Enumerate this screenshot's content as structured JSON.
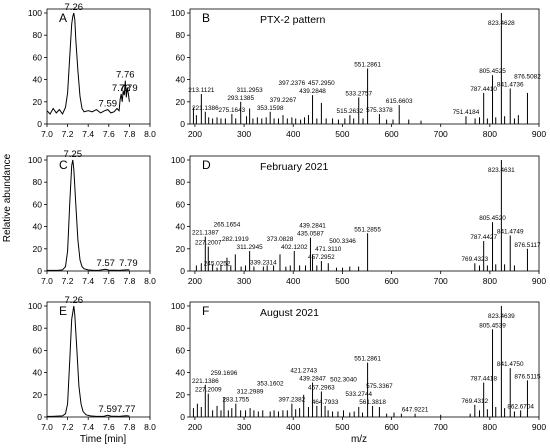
{
  "axes_text": {
    "y_label": "Relative abundance",
    "x_label_left": "Time [min]",
    "x_label_right": "m/z"
  },
  "chart_data": [
    {
      "type": "line",
      "panel": "A",
      "xlim": [
        7.0,
        8.0
      ],
      "ylim": [
        0,
        100
      ],
      "x_ticks": [
        "7.0",
        "7.2",
        "7.4",
        "7.6",
        "7.8",
        "8.0"
      ],
      "y_ticks": [
        "0",
        "20",
        "40",
        "60",
        "80",
        "100"
      ],
      "peak_labels": [
        {
          "x": 7.26,
          "y": 100,
          "text": "7.26"
        },
        {
          "x": 7.59,
          "y": 13,
          "text": "7.59"
        },
        {
          "x": 7.72,
          "y": 27,
          "text": "7.72"
        },
        {
          "x": 7.76,
          "y": 39,
          "text": "7.76"
        },
        {
          "x": 7.79,
          "y": 27,
          "text": "7.79"
        }
      ],
      "x": [
        7.0,
        7.03,
        7.06,
        7.09,
        7.12,
        7.15,
        7.18,
        7.2,
        7.22,
        7.24,
        7.25,
        7.26,
        7.27,
        7.28,
        7.3,
        7.32,
        7.34,
        7.36,
        7.4,
        7.44,
        7.48,
        7.52,
        7.56,
        7.59,
        7.62,
        7.65,
        7.68,
        7.7,
        7.71,
        7.72,
        7.73,
        7.74,
        7.75,
        7.76,
        7.77,
        7.78,
        7.79,
        7.8
      ],
      "y": [
        12,
        9,
        14,
        10,
        13,
        9,
        15,
        28,
        60,
        90,
        97,
        100,
        94,
        76,
        48,
        25,
        14,
        11,
        12,
        11,
        13,
        10,
        12,
        13,
        10,
        11,
        14,
        12,
        22,
        27,
        20,
        30,
        26,
        39,
        24,
        33,
        27,
        20
      ]
    },
    {
      "type": "bar",
      "panel": "B",
      "title": "PTX-2 pattern",
      "xlim": [
        190,
        900
      ],
      "ylim": [
        0,
        100
      ],
      "x_ticks": [
        "200",
        "300",
        "400",
        "500",
        "600",
        "700",
        "800",
        "900"
      ],
      "y_ticks": [
        "0",
        "20",
        "40",
        "60",
        "80",
        "100"
      ],
      "x": [
        197,
        203,
        213.1121,
        221.1386,
        228,
        236,
        245,
        253,
        262,
        275.1643,
        283,
        293.1385,
        305,
        311.2953,
        318,
        327,
        336,
        345,
        353.1598,
        361,
        370,
        379.2267,
        388,
        397.2376,
        405,
        415,
        423,
        431,
        439.2848,
        448,
        457.295,
        467,
        480,
        492,
        505,
        515.2632,
        523,
        533.2757,
        542,
        551.2861,
        575.3378,
        590,
        603,
        615.6603,
        635,
        660,
        751.4184,
        770,
        779,
        787.441,
        795,
        805.4525,
        812,
        823.4628,
        830,
        841.4736,
        850,
        858,
        876.5082
      ],
      "values": [
        15,
        8,
        27,
        11,
        6,
        5,
        6,
        5,
        5,
        9,
        5,
        20,
        7,
        14,
        5,
        6,
        5,
        6,
        11,
        5,
        5,
        8,
        5,
        6,
        5,
        4,
        6,
        8,
        26,
        5,
        19,
        5,
        5,
        4,
        5,
        8,
        5,
        24,
        5,
        50,
        9,
        4,
        4,
        17,
        4,
        3,
        7,
        5,
        6,
        28,
        5,
        44,
        6,
        100,
        7,
        32,
        5,
        8,
        28
      ],
      "labels": [
        {
          "x": 213.1121,
          "text": "213.1121"
        },
        {
          "x": 221.1386,
          "text": "221.1386"
        },
        {
          "x": 275.1643,
          "text": "275.1643"
        },
        {
          "x": 293.1385,
          "text": "293.1385"
        },
        {
          "x": 311.2953,
          "text": "311.2953"
        },
        {
          "x": 353.1598,
          "text": "353.1598"
        },
        {
          "x": 379.2267,
          "text": "379.2267"
        },
        {
          "x": 397.2376,
          "text": "397.2376"
        },
        {
          "x": 439.2848,
          "text": "439.2848"
        },
        {
          "x": 457.295,
          "text": "457.2950"
        },
        {
          "x": 515.2632,
          "text": "515.2632"
        },
        {
          "x": 533.2757,
          "text": "533.2757"
        },
        {
          "x": 551.2861,
          "text": "551.2861"
        },
        {
          "x": 575.3378,
          "text": "575.3378"
        },
        {
          "x": 615.6603,
          "text": "615.6603"
        },
        {
          "x": 751.4184,
          "text": "751.4184"
        },
        {
          "x": 787.441,
          "text": "787.4410"
        },
        {
          "x": 805.4525,
          "text": "805.4525"
        },
        {
          "x": 823.4628,
          "text": "823.4628"
        },
        {
          "x": 841.4736,
          "text": "841.4736"
        },
        {
          "x": 876.5082,
          "text": "876.5082"
        }
      ]
    },
    {
      "type": "line",
      "panel": "C",
      "xlim": [
        7.0,
        8.0
      ],
      "ylim": [
        0,
        100
      ],
      "x_ticks": [
        "7.0",
        "7.2",
        "7.4",
        "7.6",
        "7.8",
        "8.0"
      ],
      "y_ticks": [
        "0",
        "20",
        "40",
        "60",
        "80",
        "100"
      ],
      "peak_labels": [
        {
          "x": 7.25,
          "y": 100,
          "text": "7.25"
        },
        {
          "x": 7.57,
          "y": 2,
          "text": "7.57"
        },
        {
          "x": 7.79,
          "y": 2,
          "text": "7.79"
        }
      ],
      "x": [
        7.0,
        7.05,
        7.1,
        7.15,
        7.18,
        7.2,
        7.22,
        7.24,
        7.25,
        7.26,
        7.28,
        7.3,
        7.32,
        7.34,
        7.36,
        7.4,
        7.45,
        7.5,
        7.57,
        7.6,
        7.7,
        7.79,
        7.8
      ],
      "y": [
        0.5,
        0.5,
        0.5,
        1,
        4,
        18,
        60,
        95,
        100,
        92,
        60,
        28,
        10,
        4,
        2,
        1,
        0.5,
        0.5,
        1.5,
        0.8,
        0.5,
        1.2,
        0.8
      ]
    },
    {
      "type": "bar",
      "panel": "D",
      "title": "February 2021",
      "xlim": [
        190,
        900
      ],
      "ylim": [
        0,
        100
      ],
      "x_ticks": [
        "200",
        "300",
        "400",
        "500",
        "600",
        "700",
        "800",
        "900"
      ],
      "y_ticks": [
        "0",
        "20",
        "40",
        "60",
        "80",
        "100"
      ],
      "x": [
        203,
        213,
        221.1387,
        227.2007,
        236,
        245.0252,
        253,
        265.1654,
        273,
        282.1919,
        294,
        303,
        311.2945,
        320,
        339.2314,
        347,
        360,
        373.0828,
        385,
        394,
        402.1202,
        413,
        425,
        435.0587,
        439.2841,
        448,
        457.2952,
        471.311,
        488,
        500.3346,
        515,
        533,
        551.2855,
        769.4323,
        779,
        787.4427,
        795,
        805.452,
        812,
        823.4631,
        830,
        841.4749,
        850,
        876.5117
      ],
      "values": [
        5,
        7,
        31,
        22,
        6,
        3,
        5,
        12,
        5,
        15,
        4,
        5,
        18,
        4,
        4,
        5,
        5,
        15,
        4,
        5,
        18,
        5,
        5,
        30,
        15,
        5,
        9,
        7,
        3,
        3,
        4,
        4,
        34,
        7,
        5,
        27,
        5,
        44,
        6,
        100,
        6,
        32,
        5,
        20
      ],
      "labels": [
        {
          "x": 221.1387,
          "text": "221.1387"
        },
        {
          "x": 227.2007,
          "text": "227.2007"
        },
        {
          "x": 245.0252,
          "text": "245.0252"
        },
        {
          "x": 265.1654,
          "text": "265.1654"
        },
        {
          "x": 282.1919,
          "text": "282.1919"
        },
        {
          "x": 311.2945,
          "text": "311.2945"
        },
        {
          "x": 339.2314,
          "text": "339.2314"
        },
        {
          "x": 373.0828,
          "text": "373.0828"
        },
        {
          "x": 402.1202,
          "text": "402.1202"
        },
        {
          "x": 435.0587,
          "text": "435.0587"
        },
        {
          "x": 439.2841,
          "text": "439.2841"
        },
        {
          "x": 457.2952,
          "text": "457.2952"
        },
        {
          "x": 471.311,
          "text": "471.3110"
        },
        {
          "x": 500.3346,
          "text": "500.3346"
        },
        {
          "x": 551.2855,
          "text": "551.2855"
        },
        {
          "x": 769.4323,
          "text": "769.4323"
        },
        {
          "x": 787.4427,
          "text": "787.4427"
        },
        {
          "x": 805.452,
          "text": "805.4520"
        },
        {
          "x": 823.4631,
          "text": "823.4631"
        },
        {
          "x": 841.4749,
          "text": "841.4749"
        },
        {
          "x": 876.5117,
          "text": "876.5117"
        }
      ]
    },
    {
      "type": "line",
      "panel": "E",
      "xlim": [
        7.0,
        8.0
      ],
      "ylim": [
        0,
        100
      ],
      "x_ticks": [
        "7.0",
        "7.2",
        "7.4",
        "7.6",
        "7.8",
        "8.0"
      ],
      "y_ticks": [
        "0",
        "20",
        "40",
        "60",
        "80",
        "100"
      ],
      "peak_labels": [
        {
          "x": 7.26,
          "y": 100,
          "text": "7.26"
        },
        {
          "x": 7.59,
          "y": 2,
          "text": "7.59"
        },
        {
          "x": 7.77,
          "y": 2,
          "text": "7.77"
        }
      ],
      "x": [
        7.0,
        7.05,
        7.1,
        7.15,
        7.18,
        7.2,
        7.22,
        7.24,
        7.26,
        7.27,
        7.29,
        7.31,
        7.33,
        7.35,
        7.38,
        7.42,
        7.48,
        7.55,
        7.59,
        7.62,
        7.7,
        7.77,
        7.8
      ],
      "y": [
        0.5,
        0.5,
        0.8,
        1,
        3,
        12,
        50,
        88,
        100,
        92,
        60,
        28,
        12,
        5,
        2,
        1,
        0.5,
        0.5,
        1.5,
        0.8,
        0.5,
        1.2,
        0.8
      ]
    },
    {
      "type": "bar",
      "panel": "F",
      "title": "August 2021",
      "xlim": [
        190,
        900
      ],
      "ylim": [
        0,
        100
      ],
      "x_ticks": [
        "200",
        "300",
        "400",
        "500",
        "600",
        "700",
        "800",
        "900"
      ],
      "y_ticks": [
        "0",
        "20",
        "40",
        "60",
        "80",
        "100"
      ],
      "x": [
        197,
        205,
        213,
        221.1386,
        227.2009,
        236,
        245,
        253,
        259.1696,
        268,
        275,
        283.1755,
        293,
        303,
        312.2989,
        320,
        329,
        338,
        353.1602,
        361,
        370,
        379,
        388,
        397.2382,
        405,
        413,
        421.2743,
        431,
        439.2847,
        448,
        457.2963,
        464.7933,
        471,
        480,
        491,
        502.304,
        515,
        524,
        533.2744,
        541,
        551.2861,
        561.3818,
        575.3367,
        590,
        605,
        620,
        647.9221,
        700,
        760,
        769.4312,
        779,
        787.4418,
        795,
        805.4539,
        812,
        823.4639,
        830,
        841.475,
        850,
        862.6704,
        876.5115
      ],
      "values": [
        8,
        12,
        9,
        29,
        21,
        6,
        10,
        6,
        18,
        6,
        8,
        12,
        6,
        6,
        8,
        6,
        5,
        6,
        5,
        6,
        5,
        6,
        6,
        12,
        7,
        8,
        20,
        9,
        31,
        10,
        23,
        10,
        6,
        5,
        5,
        6,
        4,
        5,
        9,
        4,
        49,
        10,
        9,
        3,
        4,
        3,
        3,
        2,
        3,
        11,
        6,
        31,
        7,
        79,
        9,
        100,
        8,
        44,
        5,
        6,
        33
      ],
      "labels": [
        {
          "x": 221.1386,
          "text": "221.1386"
        },
        {
          "x": 227.2009,
          "text": "227.2009"
        },
        {
          "x": 259.1696,
          "text": "259.1696"
        },
        {
          "x": 283.1755,
          "text": "283.1755"
        },
        {
          "x": 312.2989,
          "text": "312.2989"
        },
        {
          "x": 353.1602,
          "text": "353.1602"
        },
        {
          "x": 397.2382,
          "text": "397.2382"
        },
        {
          "x": 421.2743,
          "text": "421.2743"
        },
        {
          "x": 439.2847,
          "text": "439.2847"
        },
        {
          "x": 457.2963,
          "text": "457.2963"
        },
        {
          "x": 464.7933,
          "text": "464.7933"
        },
        {
          "x": 502.304,
          "text": "502.3040"
        },
        {
          "x": 533.2744,
          "text": "533.2744"
        },
        {
          "x": 551.2861,
          "text": "551.2861"
        },
        {
          "x": 561.3818,
          "text": "561.3818"
        },
        {
          "x": 575.3367,
          "text": "575.3367"
        },
        {
          "x": 647.9221,
          "text": "647.9221"
        },
        {
          "x": 769.4312,
          "text": "769.4312"
        },
        {
          "x": 787.4418,
          "text": "787.4418"
        },
        {
          "x": 805.4539,
          "text": "805.4539"
        },
        {
          "x": 823.4639,
          "text": "823.4639"
        },
        {
          "x": 841.475,
          "text": "841.4750"
        },
        {
          "x": 862.6704,
          "text": "862.6704"
        },
        {
          "x": 876.5115,
          "text": "876.5115"
        }
      ]
    }
  ]
}
